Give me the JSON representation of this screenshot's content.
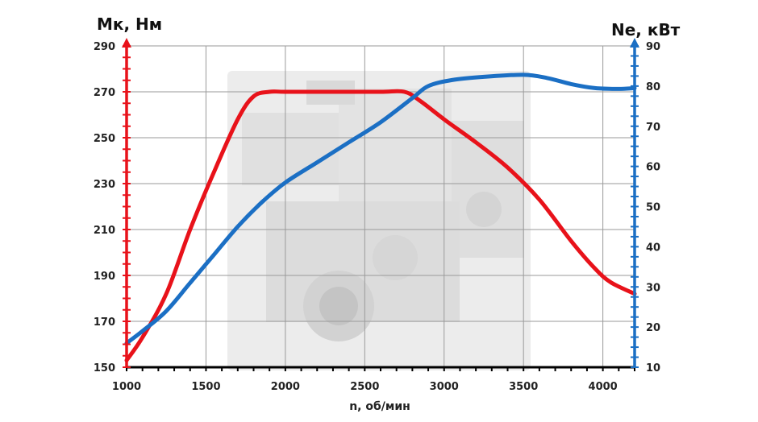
{
  "chart_data": {
    "type": "line",
    "left_axis": {
      "label": "Мк, Нм",
      "range": [
        150,
        290
      ],
      "ticks": [
        150,
        170,
        190,
        210,
        230,
        250,
        270,
        290
      ],
      "color": "#e8121a"
    },
    "right_axis": {
      "label": "Ne, кВт",
      "range": [
        10,
        90
      ],
      "ticks": [
        10,
        20,
        30,
        40,
        50,
        60,
        70,
        80,
        90
      ],
      "color": "#1b6fc4"
    },
    "x_axis": {
      "label": "n, об/мин",
      "range": [
        1000,
        4200
      ],
      "ticks": [
        1000,
        1500,
        2000,
        2500,
        3000,
        3500,
        4000
      ]
    },
    "grid": true,
    "series": [
      {
        "axis": "left",
        "color": "#e8121a",
        "points": [
          [
            1000,
            153
          ],
          [
            1100,
            163
          ],
          [
            1250,
            182
          ],
          [
            1400,
            210
          ],
          [
            1550,
            235
          ],
          [
            1700,
            258
          ],
          [
            1800,
            268
          ],
          [
            1900,
            270
          ],
          [
            2000,
            270
          ],
          [
            2300,
            270
          ],
          [
            2600,
            270
          ],
          [
            2750,
            270
          ],
          [
            2850,
            266
          ],
          [
            3000,
            258
          ],
          [
            3200,
            248
          ],
          [
            3400,
            237
          ],
          [
            3600,
            223
          ],
          [
            3800,
            205
          ],
          [
            3950,
            193
          ],
          [
            4050,
            187
          ],
          [
            4200,
            182
          ]
        ]
      },
      {
        "axis": "right",
        "color": "#1b6fc4",
        "points": [
          [
            1000,
            16
          ],
          [
            1100,
            19
          ],
          [
            1250,
            24
          ],
          [
            1400,
            31
          ],
          [
            1550,
            38
          ],
          [
            1700,
            45
          ],
          [
            1850,
            51
          ],
          [
            2000,
            56
          ],
          [
            2200,
            61
          ],
          [
            2400,
            66
          ],
          [
            2600,
            71
          ],
          [
            2800,
            77
          ],
          [
            2900,
            80
          ],
          [
            3050,
            81.5
          ],
          [
            3250,
            82.3
          ],
          [
            3500,
            82.8
          ],
          [
            3650,
            82
          ],
          [
            3800,
            80.5
          ],
          [
            3950,
            79.5
          ],
          [
            4100,
            79.3
          ],
          [
            4200,
            79.5
          ]
        ]
      }
    ]
  }
}
